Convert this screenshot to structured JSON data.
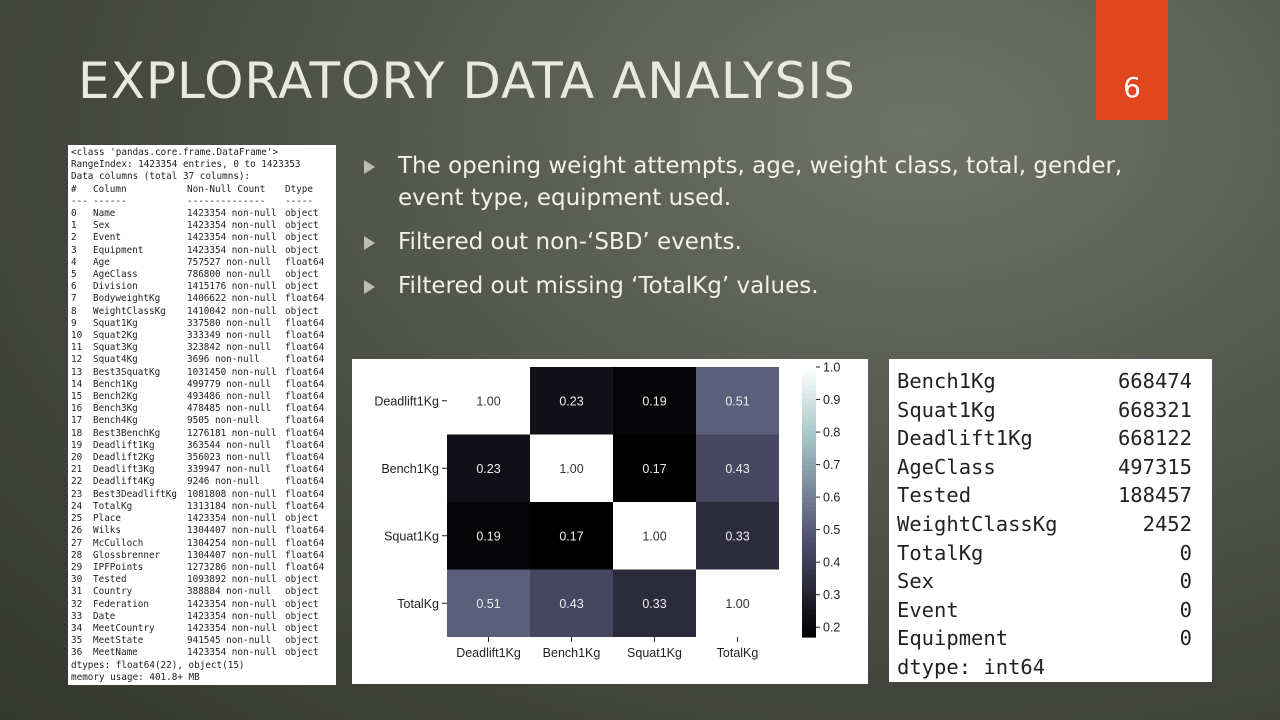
{
  "slide": {
    "title": "EXPLORATORY DATA ANALYSIS",
    "page_number": "6"
  },
  "bullets": [
    "The opening weight attempts, age, weight class, total, gender, event type, equipment used.",
    "Filtered out non-‘SBD’ events.",
    "Filtered out missing ‘TotalKg’ values."
  ],
  "df_info": {
    "header_lines": [
      "<class 'pandas.core.frame.DataFrame'>",
      "RangeIndex: 1423354 entries, 0 to 1423353",
      "Data columns (total 37 columns):"
    ],
    "column_header": [
      "#",
      "Column",
      "Non-Null Count",
      "Dtype"
    ],
    "column_rule": [
      "---",
      "------",
      "--------------",
      "-----"
    ],
    "rows": [
      [
        "0",
        "Name",
        "1423354 non-null",
        "object"
      ],
      [
        "1",
        "Sex",
        "1423354 non-null",
        "object"
      ],
      [
        "2",
        "Event",
        "1423354 non-null",
        "object"
      ],
      [
        "3",
        "Equipment",
        "1423354 non-null",
        "object"
      ],
      [
        "4",
        "Age",
        "757527 non-null",
        "float64"
      ],
      [
        "5",
        "AgeClass",
        "786800 non-null",
        "object"
      ],
      [
        "6",
        "Division",
        "1415176 non-null",
        "object"
      ],
      [
        "7",
        "BodyweightKg",
        "1406622 non-null",
        "float64"
      ],
      [
        "8",
        "WeightClassKg",
        "1410042 non-null",
        "object"
      ],
      [
        "9",
        "Squat1Kg",
        "337580 non-null",
        "float64"
      ],
      [
        "10",
        "Squat2Kg",
        "333349 non-null",
        "float64"
      ],
      [
        "11",
        "Squat3Kg",
        "323842 non-null",
        "float64"
      ],
      [
        "12",
        "Squat4Kg",
        "3696 non-null",
        "float64"
      ],
      [
        "13",
        "Best3SquatKg",
        "1031450 non-null",
        "float64"
      ],
      [
        "14",
        "Bench1Kg",
        "499779 non-null",
        "float64"
      ],
      [
        "15",
        "Bench2Kg",
        "493486 non-null",
        "float64"
      ],
      [
        "16",
        "Bench3Kg",
        "478485 non-null",
        "float64"
      ],
      [
        "17",
        "Bench4Kg",
        "9505 non-null",
        "float64"
      ],
      [
        "18",
        "Best3BenchKg",
        "1276181 non-null",
        "float64"
      ],
      [
        "19",
        "Deadlift1Kg",
        "363544 non-null",
        "float64"
      ],
      [
        "20",
        "Deadlift2Kg",
        "356023 non-null",
        "float64"
      ],
      [
        "21",
        "Deadlift3Kg",
        "339947 non-null",
        "float64"
      ],
      [
        "22",
        "Deadlift4Kg",
        "9246 non-null",
        "float64"
      ],
      [
        "23",
        "Best3DeadliftKg",
        "1081808 non-null",
        "float64"
      ],
      [
        "24",
        "TotalKg",
        "1313184 non-null",
        "float64"
      ],
      [
        "25",
        "Place",
        "1423354 non-null",
        "object"
      ],
      [
        "26",
        "Wilks",
        "1304407 non-null",
        "float64"
      ],
      [
        "27",
        "McCulloch",
        "1304254 non-null",
        "float64"
      ],
      [
        "28",
        "Glossbrenner",
        "1304407 non-null",
        "float64"
      ],
      [
        "29",
        "IPFPoints",
        "1273286 non-null",
        "float64"
      ],
      [
        "30",
        "Tested",
        "1093892 non-null",
        "object"
      ],
      [
        "31",
        "Country",
        "388884 non-null",
        "object"
      ],
      [
        "32",
        "Federation",
        "1423354 non-null",
        "object"
      ],
      [
        "33",
        "Date",
        "1423354 non-null",
        "object"
      ],
      [
        "34",
        "MeetCountry",
        "1423354 non-null",
        "object"
      ],
      [
        "35",
        "MeetState",
        "941545 non-null",
        "object"
      ],
      [
        "36",
        "MeetName",
        "1423354 non-null",
        "object"
      ]
    ],
    "footer_lines": [
      "dtypes: float64(22), object(15)",
      "memory usage: 401.8+ MB"
    ]
  },
  "chart_data": {
    "type": "heatmap",
    "rows": [
      "Deadlift1Kg",
      "Bench1Kg",
      "Squat1Kg",
      "TotalKg"
    ],
    "columns": [
      "Deadlift1Kg",
      "Bench1Kg",
      "Squat1Kg",
      "TotalKg"
    ],
    "values": [
      [
        1.0,
        0.23,
        0.19,
        0.51
      ],
      [
        0.23,
        1.0,
        0.17,
        0.43
      ],
      [
        0.19,
        0.17,
        1.0,
        0.33
      ],
      [
        0.51,
        0.43,
        0.33,
        1.0
      ]
    ],
    "cell_labels": [
      [
        "1.00",
        "0.23",
        "0.19",
        "0.51"
      ],
      [
        "0.23",
        "1.00",
        "0.17",
        "0.43"
      ],
      [
        "0.19",
        "0.17",
        "1.00",
        "0.33"
      ],
      [
        "0.51",
        "0.43",
        "0.33",
        "1.00"
      ]
    ],
    "colorbar": {
      "range": [
        0.17,
        1.0
      ],
      "ticks": [
        "1.0",
        "0.9",
        "0.8",
        "0.7",
        "0.6",
        "0.5",
        "0.4",
        "0.3",
        "0.2"
      ],
      "tick_values": [
        1.0,
        0.9,
        0.8,
        0.7,
        0.6,
        0.5,
        0.4,
        0.3,
        0.2
      ]
    },
    "colormap": "bone",
    "title": "",
    "xlabel": "",
    "ylabel": ""
  },
  "missing_counts": {
    "rows": [
      [
        "Bench1Kg",
        "668474"
      ],
      [
        "Squat1Kg",
        "668321"
      ],
      [
        "Deadlift1Kg",
        "668122"
      ],
      [
        "AgeClass",
        "497315"
      ],
      [
        "Tested",
        "188457"
      ],
      [
        "WeightClassKg",
        "2452"
      ],
      [
        "TotalKg",
        "0"
      ],
      [
        "Sex",
        "0"
      ],
      [
        "Event",
        "0"
      ],
      [
        "Equipment",
        "0"
      ]
    ],
    "dtype_line": "dtype: int64"
  },
  "colors": {
    "accent_tab": "#e1461f",
    "title_text": "#e9e9e3",
    "bullet_arrow": "#bdbdb5"
  }
}
